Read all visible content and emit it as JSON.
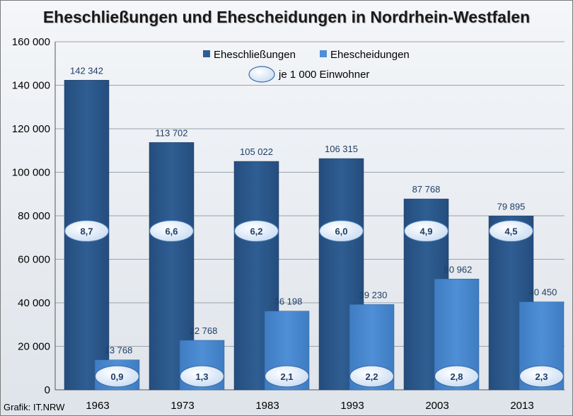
{
  "title": "Eheschließungen und Ehescheidungen in Nordrhein-Westfalen",
  "credit": "Grafik: IT.NRW",
  "colors": {
    "marriages": "#2f5e93",
    "divorces": "#4f8fd6",
    "bubble_fill": "#eaf2fc",
    "bubble_stroke": "#3a6ea8"
  },
  "chart_data": {
    "type": "bar",
    "categories": [
      "1963",
      "1973",
      "1983",
      "1993",
      "2003",
      "2013"
    ],
    "series": [
      {
        "name": "Eheschließungen",
        "values": [
          142342,
          113702,
          105022,
          106315,
          87768,
          79895
        ],
        "labels": [
          "142 342",
          "113 702",
          "105 022",
          "106 315",
          "87 768",
          "79 895"
        ],
        "rates": [
          "8,7",
          "6,6",
          "6,2",
          "6,0",
          "4,9",
          "4,5"
        ]
      },
      {
        "name": "Ehescheidungen",
        "values": [
          13768,
          22768,
          36198,
          39230,
          50962,
          40450
        ],
        "labels": [
          "13 768",
          "22 768",
          "36 198",
          "39 230",
          "50 962",
          "40 450"
        ],
        "rates": [
          "0,9",
          "1,3",
          "2,1",
          "2,2",
          "2,8",
          "2,3"
        ]
      }
    ],
    "rate_legend": "je 1 000 Einwohner",
    "y_ticks": [
      0,
      20000,
      40000,
      60000,
      80000,
      100000,
      120000,
      140000,
      160000
    ],
    "y_tick_labels": [
      "0",
      "20 000",
      "40 000",
      "60 000",
      "80 000",
      "100 000",
      "120 000",
      "140 000",
      "160 000"
    ],
    "ylim": [
      0,
      160000
    ],
    "grid": true,
    "legend_position": "top"
  }
}
